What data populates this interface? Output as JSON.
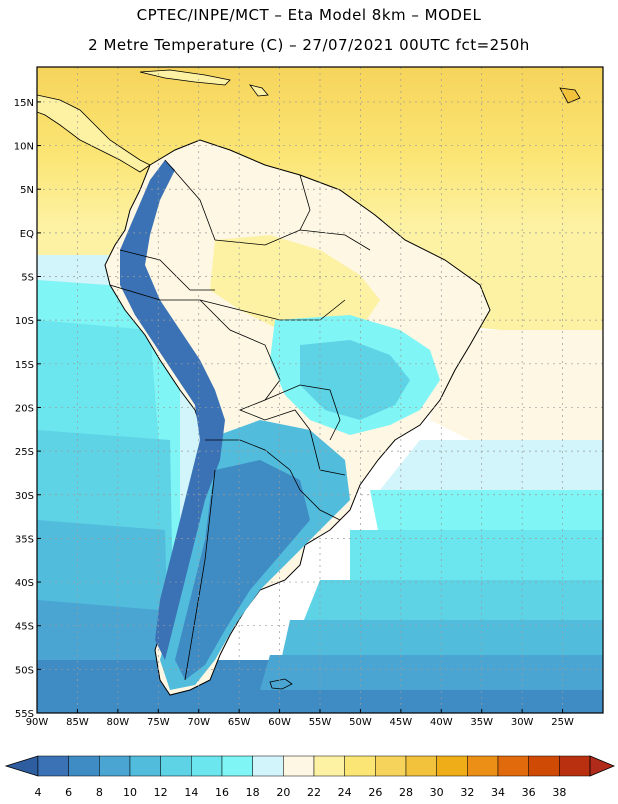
{
  "header": {
    "line1": "CPTEC/INPE/MCT –  Eta Model 8km – MODEL",
    "line2": "2 Metre Temperature (C) – 27/07/2021 00UTC fct=250h"
  },
  "map": {
    "lat_ticks": [
      "15N",
      "10N",
      "5N",
      "EQ",
      "5S",
      "10S",
      "15S",
      "20S",
      "25S",
      "30S",
      "35S",
      "40S",
      "45S",
      "50S",
      "55S"
    ],
    "lon_ticks": [
      "90W",
      "85W",
      "80W",
      "75W",
      "70W",
      "65W",
      "60W",
      "55W",
      "50W",
      "45W",
      "40W",
      "35W",
      "30W",
      "25W"
    ],
    "extent": {
      "lon_min": -90,
      "lon_max": -20,
      "lat_min": -55,
      "lat_max": 19
    }
  },
  "colorbar": {
    "labels": [
      "4",
      "6",
      "8",
      "10",
      "12",
      "14",
      "16",
      "18",
      "20",
      "22",
      "24",
      "26",
      "28",
      "30",
      "32",
      "34",
      "36",
      "38"
    ],
    "colors": [
      "#3a72b5",
      "#3f8cc4",
      "#4aa5d2",
      "#52bcdd",
      "#5ed3e6",
      "#6ce6ee",
      "#7ff5f5",
      "#d2f4fb",
      "#fdf7e3",
      "#fdf2a4",
      "#fbe574",
      "#f6d45b",
      "#f2c23c",
      "#efad17",
      "#eb8f16",
      "#e16a0c",
      "#cf4a05",
      "#b8300f"
    ],
    "under_color": "#2e5ea0",
    "over_color": "#b12b1a"
  }
}
